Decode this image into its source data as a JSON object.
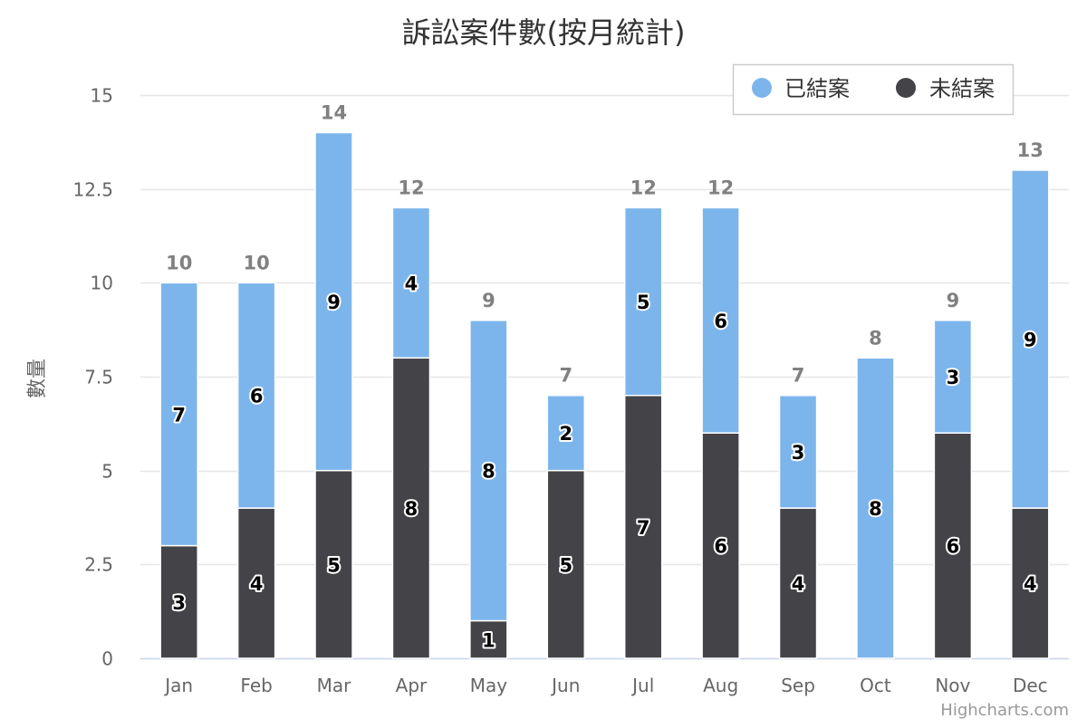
{
  "chart_data": {
    "type": "bar",
    "stacked": true,
    "title": "訴訟案件數(按月統計)",
    "xlabel": "",
    "ylabel": "數量",
    "categories": [
      "Jan",
      "Feb",
      "Mar",
      "Apr",
      "May",
      "Jun",
      "Jul",
      "Aug",
      "Sep",
      "Oct",
      "Nov",
      "Dec"
    ],
    "ylim": [
      0,
      15
    ],
    "yticks": [
      "0",
      "2.5",
      "5",
      "7.5",
      "10",
      "12.5",
      "15"
    ],
    "series": [
      {
        "name": "已結案",
        "color": "#7cb5ec",
        "values": [
          7,
          6,
          9,
          4,
          8,
          2,
          5,
          6,
          3,
          8,
          3,
          9
        ]
      },
      {
        "name": "未結案",
        "color": "#434348",
        "values": [
          3,
          4,
          5,
          8,
          1,
          5,
          7,
          6,
          4,
          0,
          6,
          4
        ]
      }
    ],
    "totals": [
      10,
      10,
      14,
      12,
      9,
      7,
      12,
      12,
      7,
      8,
      9,
      13
    ],
    "grid": true,
    "legend_position": "top-right"
  },
  "credits": "Highcharts.com"
}
